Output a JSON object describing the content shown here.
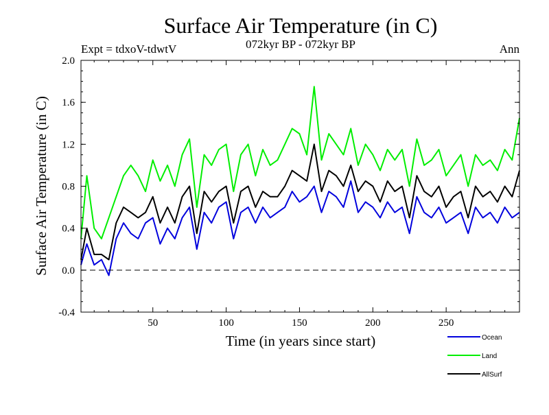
{
  "header": {
    "title": "Surface Air Temperature (in C)",
    "experiment": "Expt = tdxoV-tdwtV",
    "period": "072kyr BP - 072kyr BP",
    "season": "Ann"
  },
  "chart_data": {
    "type": "line",
    "title": "Surface Air Temperature (in C)",
    "xlabel": "Time (in years since start)",
    "ylabel": "Surface Air Temperature (in C)",
    "xlim": [
      1,
      300
    ],
    "ylim": [
      -0.4,
      2.0
    ],
    "xticks": [
      50,
      100,
      150,
      200,
      250
    ],
    "xtick_labels": [
      "50",
      "100",
      "150",
      "200",
      "250"
    ],
    "yticks": [
      -0.4,
      0.0,
      0.4,
      0.8,
      1.2,
      1.6,
      2.0
    ],
    "ytick_labels": [
      "-0.4",
      "0.0",
      "0.4",
      "0.8",
      "1.2",
      "1.6",
      "2.0"
    ],
    "reference_line": 0.0,
    "grid": false,
    "legend_position": "bottom-right, outside plot",
    "x": [
      1,
      5,
      10,
      15,
      20,
      25,
      30,
      35,
      40,
      45,
      50,
      55,
      60,
      65,
      70,
      75,
      80,
      85,
      90,
      95,
      100,
      105,
      110,
      115,
      120,
      125,
      130,
      135,
      140,
      145,
      150,
      155,
      160,
      165,
      170,
      175,
      180,
      185,
      190,
      195,
      200,
      205,
      210,
      215,
      220,
      225,
      230,
      235,
      240,
      245,
      250,
      255,
      260,
      265,
      270,
      275,
      280,
      285,
      290,
      295,
      300
    ],
    "series": [
      {
        "name": "Ocean",
        "color": "#0000dd",
        "values": [
          0.05,
          0.25,
          0.05,
          0.1,
          -0.05,
          0.3,
          0.45,
          0.35,
          0.3,
          0.45,
          0.5,
          0.25,
          0.4,
          0.3,
          0.5,
          0.6,
          0.2,
          0.55,
          0.45,
          0.6,
          0.65,
          0.3,
          0.55,
          0.6,
          0.45,
          0.6,
          0.5,
          0.55,
          0.6,
          0.75,
          0.65,
          0.7,
          0.8,
          0.55,
          0.75,
          0.7,
          0.6,
          0.85,
          0.55,
          0.65,
          0.6,
          0.5,
          0.65,
          0.55,
          0.6,
          0.35,
          0.7,
          0.55,
          0.5,
          0.6,
          0.45,
          0.5,
          0.55,
          0.35,
          0.6,
          0.5,
          0.55,
          0.45,
          0.6,
          0.5,
          0.55
        ]
      },
      {
        "name": "Land",
        "color": "#00ee00",
        "values": [
          0.3,
          0.9,
          0.4,
          0.3,
          0.5,
          0.7,
          0.9,
          1.0,
          0.9,
          0.75,
          1.05,
          0.85,
          1.0,
          0.8,
          1.1,
          1.25,
          0.6,
          1.1,
          1.0,
          1.15,
          1.2,
          0.75,
          1.1,
          1.2,
          0.9,
          1.15,
          1.0,
          1.05,
          1.2,
          1.35,
          1.3,
          1.1,
          1.75,
          1.05,
          1.3,
          1.2,
          1.1,
          1.35,
          1.0,
          1.2,
          1.1,
          0.95,
          1.15,
          1.05,
          1.15,
          0.8,
          1.25,
          1.0,
          1.05,
          1.15,
          0.9,
          1.0,
          1.1,
          0.8,
          1.1,
          1.0,
          1.05,
          0.95,
          1.15,
          1.05,
          1.45
        ]
      },
      {
        "name": "AllSurf",
        "color": "#000000",
        "values": [
          0.1,
          0.4,
          0.15,
          0.15,
          0.1,
          0.45,
          0.6,
          0.55,
          0.5,
          0.55,
          0.7,
          0.45,
          0.6,
          0.45,
          0.7,
          0.8,
          0.35,
          0.75,
          0.65,
          0.75,
          0.8,
          0.45,
          0.75,
          0.8,
          0.6,
          0.75,
          0.7,
          0.7,
          0.8,
          0.95,
          0.9,
          0.85,
          1.2,
          0.75,
          0.95,
          0.9,
          0.8,
          1.0,
          0.75,
          0.85,
          0.8,
          0.65,
          0.85,
          0.75,
          0.8,
          0.5,
          0.9,
          0.75,
          0.7,
          0.8,
          0.6,
          0.7,
          0.75,
          0.5,
          0.8,
          0.7,
          0.75,
          0.65,
          0.8,
          0.7,
          0.95
        ]
      }
    ]
  }
}
